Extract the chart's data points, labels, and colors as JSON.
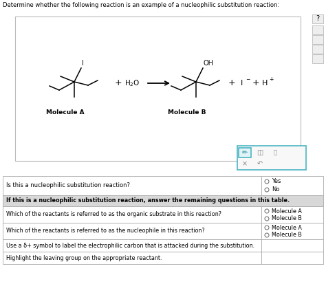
{
  "title": "Determine whether the following reaction is an example of a nucleophilic substitution reaction:",
  "bg_color": "#ffffff",
  "box_bg": "#f9f9f9",
  "box_border": "#bbbbbb",
  "table_header_bg": "#d8d8d8",
  "table_border": "#aaaaaa",
  "question1": "Is this a nucleophilic substitution reaction?",
  "question2": "If this is a nucleophilic substitution reaction, answer the remaining questions in this table.",
  "question3": "Which of the reactants is referred to as the organic substrate in this reaction?",
  "question4": "Which of the reactants is referred to as the nucleophile in this reaction?",
  "question5": "Use a δ+ symbol to label the electrophilic carbon that is attacked during the substitution.",
  "question6": "Highlight the leaving group on the appropriate reactant.",
  "option_yes": "Yes",
  "option_no": "No",
  "option_mol_a": "Molecule A",
  "option_mol_b": "Molecule B",
  "label_mol_a": "Molecule A",
  "label_mol_b": "Molecule B",
  "text_color": "#000000",
  "radio_color": "#666666",
  "icon_bg": "#eeeeee",
  "icon_border": "#bbbbbb",
  "teal": "#4ab5c4",
  "toolbar_bg": "#f5f5f5"
}
